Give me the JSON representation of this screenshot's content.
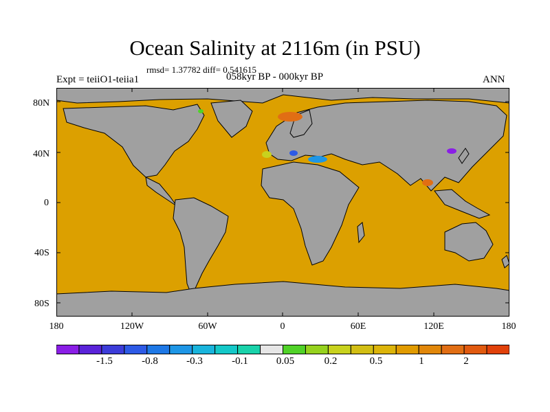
{
  "title": "Ocean Salinity at 2116m (in PSU)",
  "stats": "rmsd= 1.37782 diff= 0.541615",
  "left_label": "Expt = teiiO1-teiia1",
  "center_label": "058kyr BP - 000kyr BP",
  "right_label": "ANN",
  "lat_ticks": [
    "80N",
    "40N",
    "0",
    "40S",
    "80S"
  ],
  "lon_ticks": [
    "180",
    "120W",
    "60W",
    "0",
    "60E",
    "120E",
    "180"
  ],
  "colorbar": {
    "colors": [
      "#8a1ee6",
      "#5a23d9",
      "#3c3cd9",
      "#2d5ae6",
      "#1e78e6",
      "#1e96e6",
      "#19b4dc",
      "#14c8c8",
      "#19d2aa",
      "#e6e6e6",
      "#50d228",
      "#96d21e",
      "#c8d21e",
      "#d2be14",
      "#dcb40a",
      "#e19b00",
      "#e1870a",
      "#e16e14",
      "#e15a0f",
      "#e1410a"
    ],
    "labels": [
      "-1.5",
      "-0.8",
      "-0.3",
      "-0.1",
      "0.05",
      "0.2",
      "0.5",
      "1",
      "2"
    ]
  },
  "colors": {
    "ocean": "#dca000",
    "land": "#a0a0a0"
  }
}
